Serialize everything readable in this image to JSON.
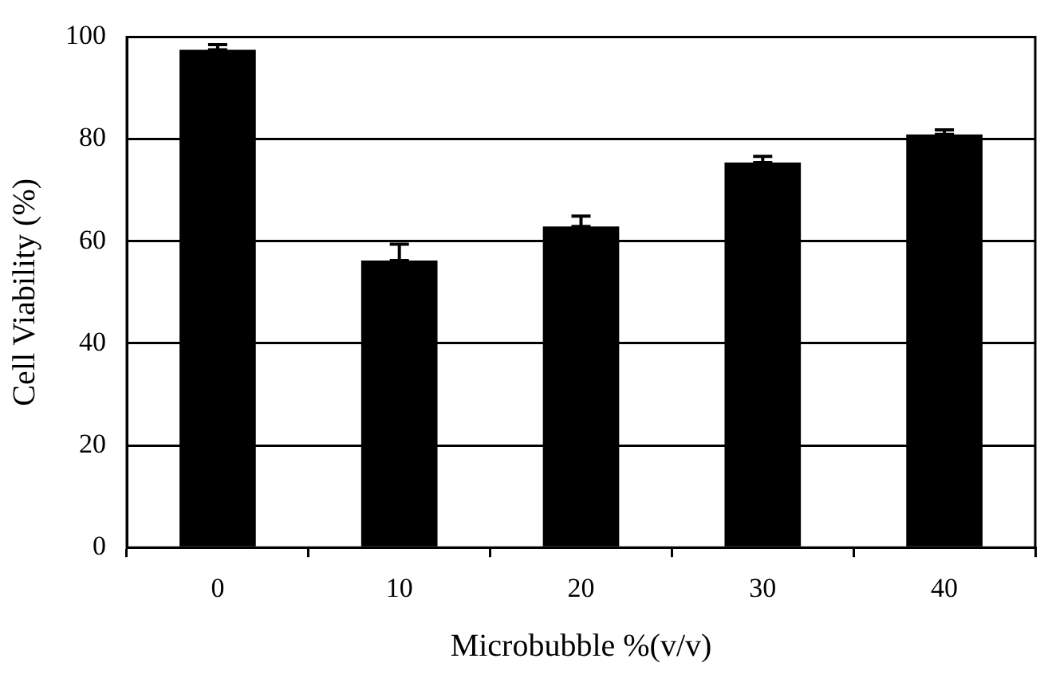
{
  "chart_data": {
    "type": "bar",
    "xlabel": "Microbubble %(v/v)",
    "ylabel": "Cell Viability (%)",
    "categories": [
      "0",
      "10",
      "20",
      "30",
      "40"
    ],
    "values": [
      97.5,
      56.2,
      62.9,
      75.4,
      80.9
    ],
    "color": "#000000",
    "errors": [
      [
        97.5,
        98.5
      ],
      [
        56.2,
        59.4
      ],
      [
        62.9,
        64.9
      ],
      [
        75.4,
        76.6
      ],
      [
        80.9,
        81.8
      ]
    ],
    "ylim": [
      0,
      100
    ],
    "yticks": [
      0,
      20,
      40,
      60,
      80,
      100
    ],
    "grid": "y",
    "legend": false
  }
}
